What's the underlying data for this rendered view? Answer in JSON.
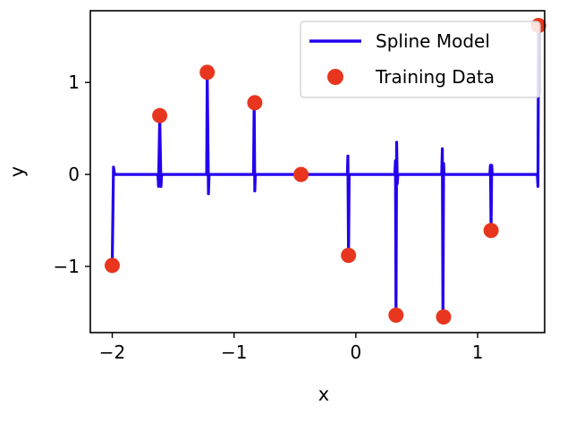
{
  "chart_data": {
    "type": "line",
    "xlabel": "x",
    "ylabel": "y",
    "xlim": [
      -2.18,
      1.55
    ],
    "ylim": [
      -1.72,
      1.78
    ],
    "x_ticks": [
      -2,
      -1,
      0,
      1
    ],
    "x_tick_labels": [
      "−2",
      "−1",
      "0",
      "1"
    ],
    "y_ticks": [
      -1,
      0,
      1
    ],
    "y_tick_labels": [
      "−1",
      "0",
      "1"
    ],
    "grid": false,
    "legend_position": "top-right",
    "series": [
      {
        "name": "Spline Model",
        "kind": "line",
        "color": "#2200ee",
        "points": [
          [
            -2.0,
            -0.97
          ],
          [
            -1.99,
            0.08
          ],
          [
            -1.98,
            0.0
          ],
          [
            -1.625,
            0.0
          ],
          [
            -1.62,
            -0.13
          ],
          [
            -1.61,
            0.62
          ],
          [
            -1.6,
            -0.13
          ],
          [
            -1.595,
            0.0
          ],
          [
            -1.225,
            0.0
          ],
          [
            -1.22,
            1.1
          ],
          [
            -1.21,
            -0.21
          ],
          [
            -1.205,
            0.0
          ],
          [
            -0.84,
            0.0
          ],
          [
            -0.835,
            0.8
          ],
          [
            -0.83,
            -0.18
          ],
          [
            -0.825,
            0.0
          ],
          [
            -0.07,
            0.0
          ],
          [
            -0.065,
            0.2
          ],
          [
            -0.06,
            -0.9
          ],
          [
            -0.055,
            0.0
          ],
          [
            0.32,
            0.0
          ],
          [
            0.325,
            0.15
          ],
          [
            0.33,
            -1.5
          ],
          [
            0.335,
            0.35
          ],
          [
            0.34,
            -0.1
          ],
          [
            0.345,
            0.0
          ],
          [
            0.705,
            0.0
          ],
          [
            0.71,
            0.28
          ],
          [
            0.715,
            -1.55
          ],
          [
            0.72,
            0.12
          ],
          [
            0.725,
            0.0
          ],
          [
            1.1,
            0.0
          ],
          [
            1.105,
            0.1
          ],
          [
            1.11,
            -0.6
          ],
          [
            1.115,
            0.1
          ],
          [
            1.12,
            0.0
          ],
          [
            1.49,
            0.0
          ],
          [
            1.495,
            -0.13
          ],
          [
            1.5,
            1.62
          ]
        ]
      },
      {
        "name": "Training Data",
        "kind": "scatter",
        "color": "#e8361e",
        "x": [
          -2.0,
          -1.61,
          -1.22,
          -0.83,
          -0.45,
          -0.06,
          0.33,
          0.72,
          1.11,
          1.5
        ],
        "y": [
          -0.99,
          0.64,
          1.11,
          0.78,
          0.0,
          -0.88,
          -1.53,
          -1.55,
          -0.61,
          1.62
        ]
      }
    ]
  }
}
